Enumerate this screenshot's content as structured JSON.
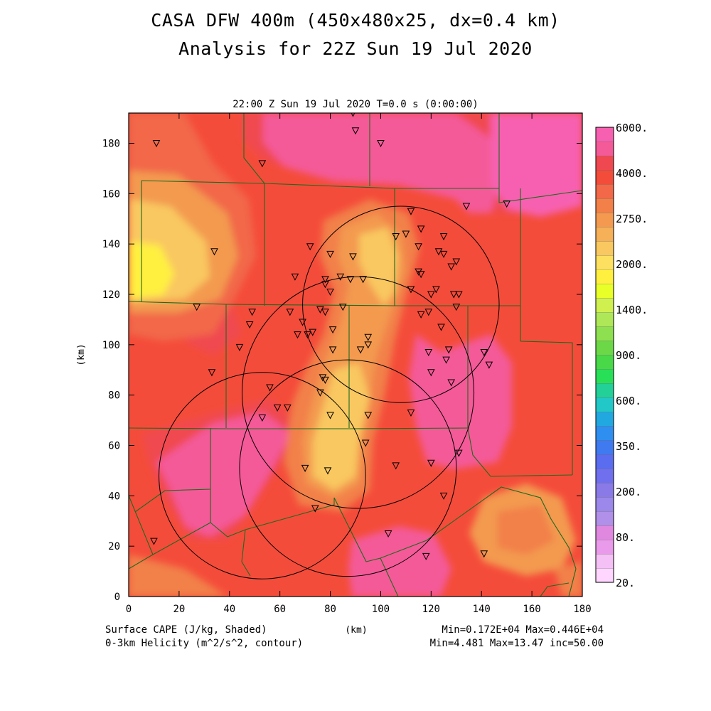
{
  "header": {
    "title_line1": "CASA DFW 400m (450x480x25, dx=0.4 km)",
    "title_line2": "Analysis for 22Z Sun 19 Jul 2020",
    "subtitle": "22:00 Z Sun 19 Jul 2020   T=0.0 s (0:00:00)"
  },
  "footer": {
    "left1": "Surface CAPE (J/kg, Shaded)",
    "left2": "0-3km Helicity (m^2/s^2, contour)",
    "center": "(km)",
    "right1": "Min=0.172E+04 Max=0.446E+04",
    "right2": "Min=4.481 Max=13.47 inc=50.00"
  },
  "chart_data": {
    "type": "heatmap",
    "xlabel": "(km)",
    "ylabel": "(km)",
    "xlim": [
      0,
      180
    ],
    "ylim": [
      0,
      192
    ],
    "xticks": [
      "0",
      "20",
      "40",
      "60",
      "80",
      "100",
      "120",
      "140",
      "160",
      "180"
    ],
    "yticks": [
      "0",
      "20",
      "40",
      "60",
      "80",
      "100",
      "120",
      "140",
      "160",
      "180"
    ],
    "colorbar_labels": [
      "20.",
      "80.",
      "200.",
      "350.",
      "600.",
      "900.",
      "1400.",
      "2000.",
      "2750.",
      "4000.",
      "6000."
    ],
    "colorbar_colors": [
      "#ffd6ff",
      "#f5c0f5",
      "#ea9aea",
      "#e088e0",
      "#b090e8",
      "#9b88ea",
      "#8a7ae8",
      "#7070ee",
      "#5a6cf0",
      "#3f7af0",
      "#2f8ff0",
      "#22a8e0",
      "#22c8c8",
      "#22d098",
      "#28e058",
      "#48d848",
      "#6cd848",
      "#8ee050",
      "#aee858",
      "#d0f050",
      "#e8ff28",
      "#fff040",
      "#fde060",
      "#f9c860",
      "#f5b058",
      "#f39a50",
      "#f28048",
      "#f26848",
      "#f44c3a",
      "#f04850",
      "#f45a98",
      "#f760b0"
    ],
    "field_min": "0.172E+04",
    "field_max": "0.446E+04",
    "helicity_min": "4.481",
    "helicity_max": "13.47",
    "helicity_inc": "50.00",
    "helicity_circles_km": [
      {
        "x": 108,
        "y": 116,
        "r": 39
      },
      {
        "x": 91,
        "y": 81,
        "r": 46
      },
      {
        "x": 87,
        "y": 51,
        "r": 43
      },
      {
        "x": 53,
        "y": 48,
        "r": 41
      }
    ],
    "stations_km": [
      [
        89,
        192
      ],
      [
        90,
        185
      ],
      [
        100,
        180
      ],
      [
        11,
        180
      ],
      [
        53,
        172
      ],
      [
        106,
        143
      ],
      [
        112,
        153
      ],
      [
        116,
        146
      ],
      [
        125,
        143
      ],
      [
        134,
        155
      ],
      [
        150,
        156
      ],
      [
        110,
        144
      ],
      [
        115,
        139
      ],
      [
        123,
        137
      ],
      [
        125,
        136
      ],
      [
        128,
        131
      ],
      [
        130,
        133
      ],
      [
        115,
        129
      ],
      [
        116,
        128
      ],
      [
        112,
        122
      ],
      [
        120,
        120
      ],
      [
        122,
        122
      ],
      [
        129,
        120
      ],
      [
        131,
        120
      ],
      [
        130,
        115
      ],
      [
        34,
        137
      ],
      [
        72,
        139
      ],
      [
        80,
        136
      ],
      [
        89,
        135
      ],
      [
        66,
        127
      ],
      [
        78,
        126
      ],
      [
        84,
        127
      ],
      [
        88,
        126
      ],
      [
        93,
        126
      ],
      [
        78,
        124
      ],
      [
        80,
        121
      ],
      [
        27,
        115
      ],
      [
        64,
        113
      ],
      [
        49,
        113
      ],
      [
        48,
        108
      ],
      [
        69,
        109
      ],
      [
        76,
        114
      ],
      [
        78,
        113
      ],
      [
        85,
        115
      ],
      [
        67,
        104
      ],
      [
        71,
        104
      ],
      [
        73,
        105
      ],
      [
        81,
        106
      ],
      [
        116,
        112
      ],
      [
        119,
        113
      ],
      [
        124,
        107
      ],
      [
        95,
        103
      ],
      [
        95,
        100
      ],
      [
        92,
        98
      ],
      [
        81,
        98
      ],
      [
        44,
        99
      ],
      [
        33,
        89
      ],
      [
        119,
        97
      ],
      [
        127,
        98
      ],
      [
        126,
        94
      ],
      [
        120,
        89
      ],
      [
        128,
        85
      ],
      [
        141,
        97
      ],
      [
        143,
        92
      ],
      [
        56,
        83
      ],
      [
        59,
        75
      ],
      [
        63,
        75
      ],
      [
        77,
        87
      ],
      [
        78,
        86
      ],
      [
        76,
        81
      ],
      [
        53,
        71
      ],
      [
        80,
        72
      ],
      [
        95,
        72
      ],
      [
        112,
        73
      ],
      [
        94,
        61
      ],
      [
        131,
        57
      ],
      [
        120,
        53
      ],
      [
        106,
        52
      ],
      [
        70,
        51
      ],
      [
        79,
        50
      ],
      [
        74,
        35
      ],
      [
        125,
        40
      ],
      [
        10,
        22
      ],
      [
        103,
        25
      ],
      [
        118,
        16
      ],
      [
        141,
        17
      ]
    ]
  }
}
